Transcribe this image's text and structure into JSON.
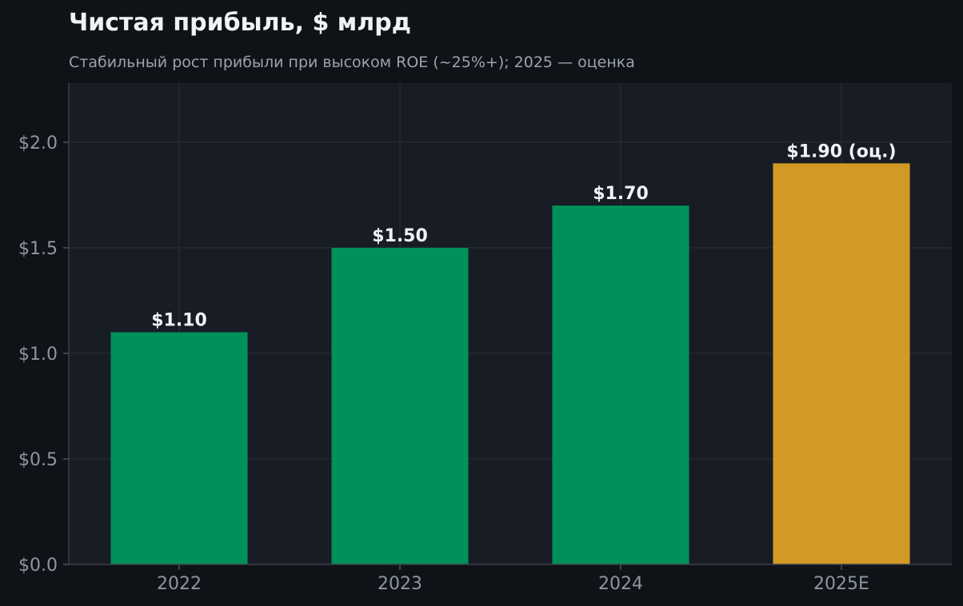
{
  "chart_data": {
    "type": "bar",
    "title": "Чистая прибыль, $ млрд",
    "subtitle": "Стабильный рост прибыли при высоком ROE (~25%+); 2025 — оценка",
    "xlabel": "",
    "ylabel": "",
    "categories": [
      "2022",
      "2023",
      "2024",
      "2025E"
    ],
    "values": [
      1.1,
      1.5,
      1.7,
      1.9
    ],
    "data_labels": [
      "$1.10",
      "$1.50",
      "$1.70",
      "$1.90 (оц.)"
    ],
    "bar_colors": [
      "#00905a",
      "#00905a",
      "#00905a",
      "#d29a24"
    ],
    "ylim": [
      0,
      2.28
    ],
    "yticks": [
      0,
      0.5,
      1.0,
      1.5,
      2.0
    ],
    "ytick_labels": [
      "$0.0",
      "$0.5",
      "$1.0",
      "$1.5",
      "$2.0"
    ],
    "grid": true
  },
  "colors": {
    "background": "#0f1317",
    "plot_background": "#181c24",
    "actual": "#00905a",
    "estimate": "#d29a24"
  }
}
